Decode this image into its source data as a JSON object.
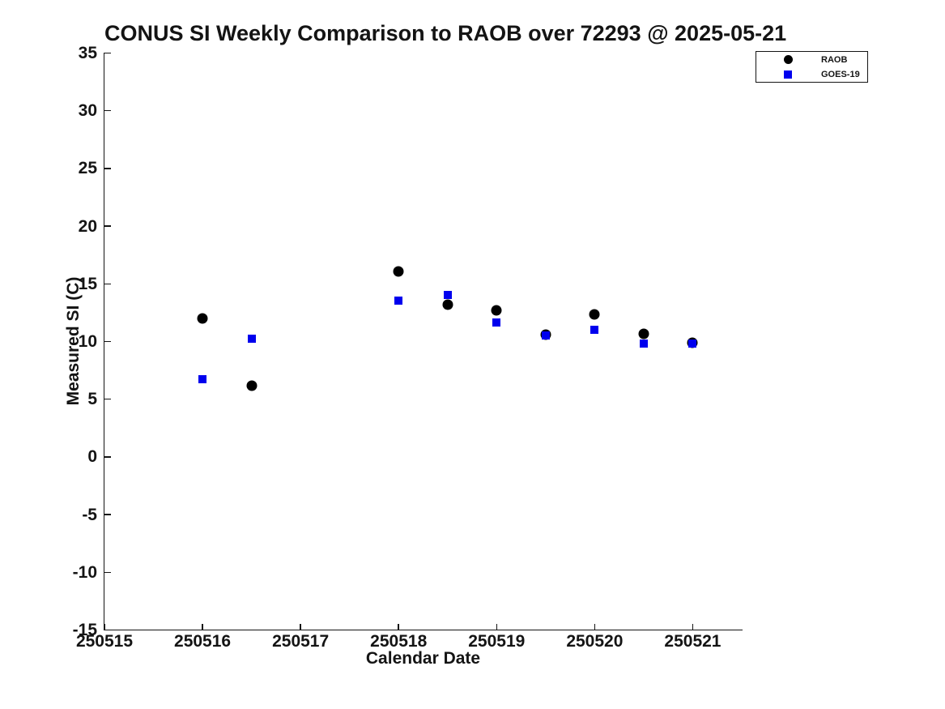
{
  "page": {
    "background": "#ffffff"
  },
  "colors": {
    "raob": "#000000",
    "goes19": "#0000ee",
    "text": "#141414",
    "axis": "#141414"
  },
  "chart_data": {
    "type": "scatter",
    "title": "CONUS SI Weekly Comparison to RAOB over 72293 @ 2025-05-21",
    "xlabel": "Calendar Date",
    "ylabel": "Measured SI (C)",
    "xlim": [
      250515,
      250521.5
    ],
    "ylim": [
      -15,
      35
    ],
    "grid": false,
    "x_ticks": [
      {
        "value": 250515,
        "label": "250515"
      },
      {
        "value": 250516,
        "label": "250516"
      },
      {
        "value": 250517,
        "label": "250517"
      },
      {
        "value": 250518,
        "label": "250518"
      },
      {
        "value": 250519,
        "label": "250519"
      },
      {
        "value": 250520,
        "label": "250520"
      },
      {
        "value": 250521,
        "label": "250521"
      }
    ],
    "y_ticks": [
      {
        "value": 35,
        "label": "35"
      },
      {
        "value": 30,
        "label": "30"
      },
      {
        "value": 25,
        "label": "25"
      },
      {
        "value": 20,
        "label": "20"
      },
      {
        "value": 15,
        "label": "15"
      },
      {
        "value": 10,
        "label": "10"
      },
      {
        "value": 5,
        "label": "5"
      },
      {
        "value": 0,
        "label": "0"
      },
      {
        "value": -5,
        "label": "-5"
      },
      {
        "value": -10,
        "label": "-10"
      },
      {
        "value": -15,
        "label": "-15"
      }
    ],
    "legend": {
      "position": "top-right",
      "entries": [
        {
          "label": "RAOB",
          "marker": "circle",
          "color": "#000000"
        },
        {
          "label": "GOES-19",
          "marker": "square",
          "color": "#0000ee"
        }
      ]
    },
    "series": [
      {
        "name": "RAOB",
        "marker": "circle",
        "color": "#000000",
        "points": [
          {
            "x": 250516.0,
            "y": 12.0
          },
          {
            "x": 250516.5,
            "y": 6.2
          },
          {
            "x": 250518.0,
            "y": 16.1
          },
          {
            "x": 250518.5,
            "y": 13.2
          },
          {
            "x": 250519.0,
            "y": 12.7
          },
          {
            "x": 250519.5,
            "y": 10.6
          },
          {
            "x": 250520.0,
            "y": 12.35
          },
          {
            "x": 250520.5,
            "y": 10.7
          },
          {
            "x": 250521.0,
            "y": 9.9
          }
        ]
      },
      {
        "name": "GOES-19",
        "marker": "square",
        "color": "#0000ee",
        "points": [
          {
            "x": 250516.0,
            "y": 6.7
          },
          {
            "x": 250516.5,
            "y": 10.25
          },
          {
            "x": 250518.0,
            "y": 13.55
          },
          {
            "x": 250518.5,
            "y": 14.05
          },
          {
            "x": 250519.0,
            "y": 11.65
          },
          {
            "x": 250519.5,
            "y": 10.5
          },
          {
            "x": 250520.0,
            "y": 11.0
          },
          {
            "x": 250520.5,
            "y": 9.8
          },
          {
            "x": 250521.0,
            "y": 9.85
          }
        ]
      }
    ]
  }
}
